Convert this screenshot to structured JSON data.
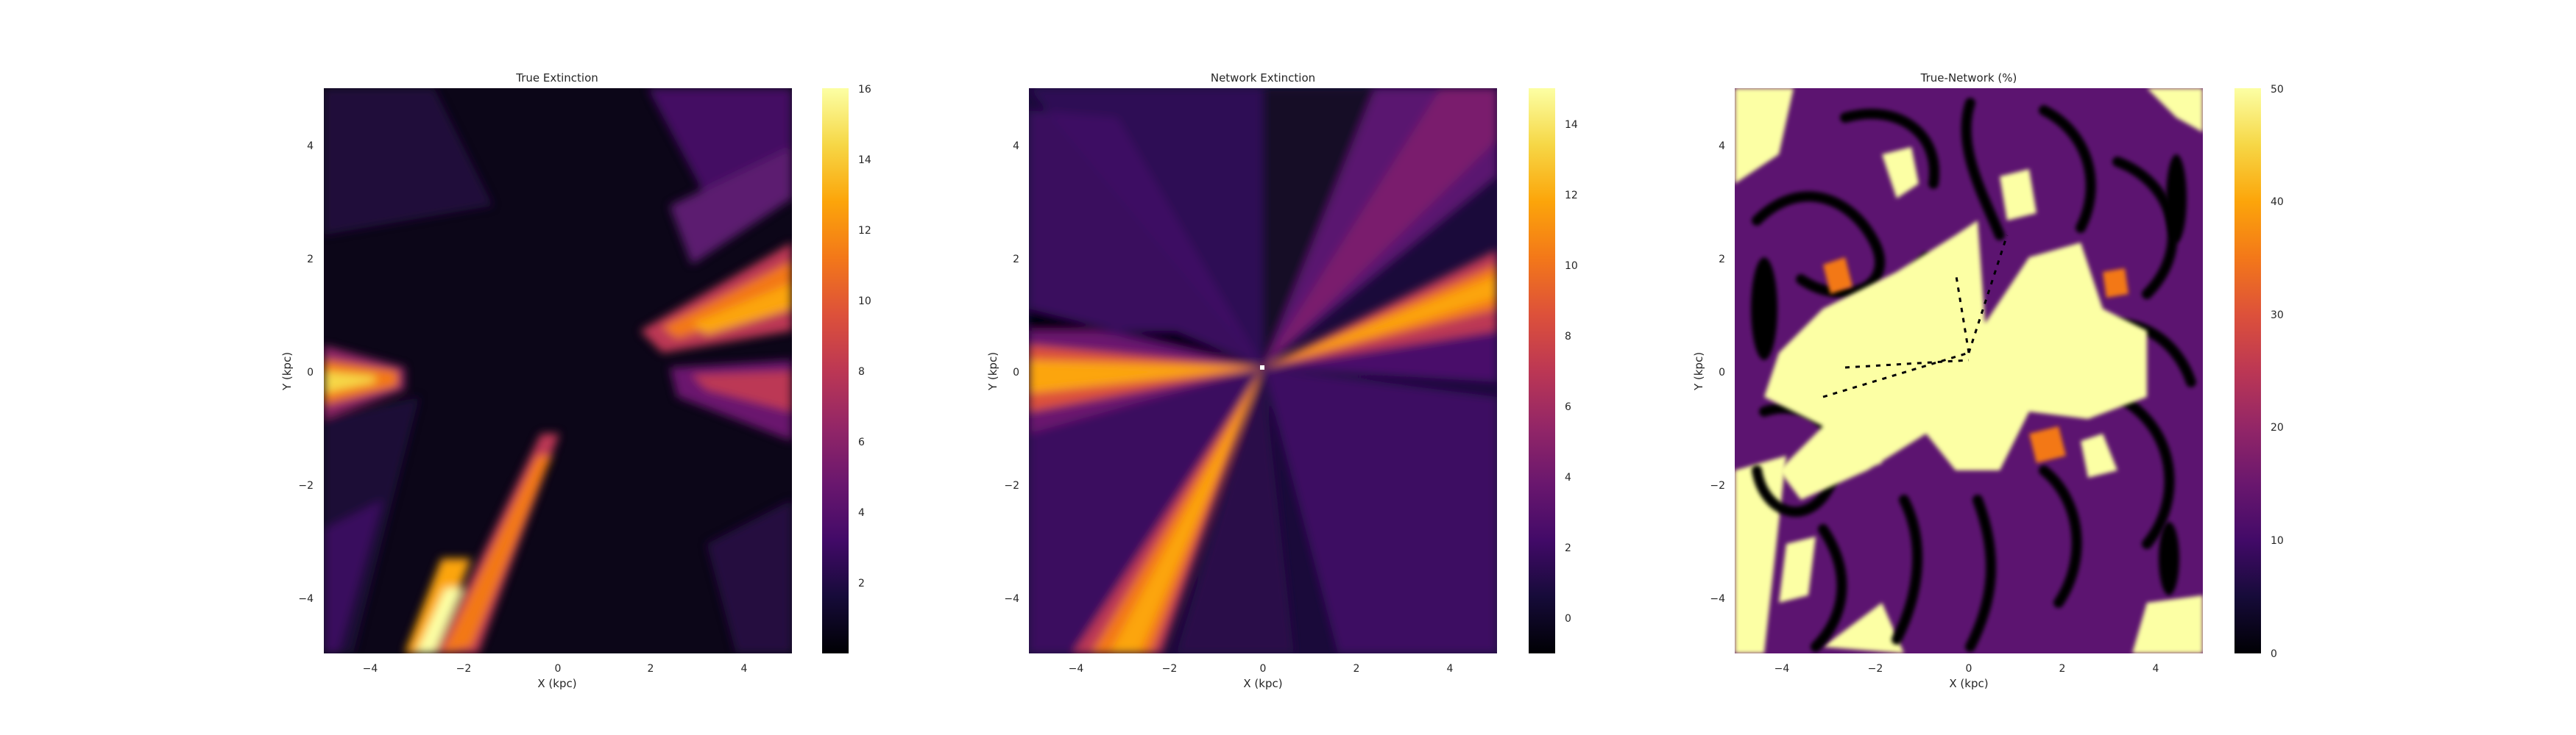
{
  "chart_data": [
    {
      "type": "heatmap",
      "title": "True Extinction",
      "xlabel": "X (kpc)",
      "ylabel": "Y (kpc)",
      "xlim": [
        -5,
        5
      ],
      "ylim": [
        -5,
        5
      ],
      "xticks": [
        "−4",
        "−2",
        "0",
        "2",
        "4"
      ],
      "yticks": [
        "4",
        "2",
        "0",
        "−2",
        "−4"
      ],
      "colormap": "inferno",
      "colorbar": {
        "min": 0,
        "max": 16,
        "ticks": [
          "2",
          "4",
          "6",
          "8",
          "10",
          "12",
          "14",
          "16"
        ]
      }
    },
    {
      "type": "heatmap",
      "title": "Network Extinction",
      "xlabel": "X (kpc)",
      "ylabel": "Y (kpc)",
      "xlim": [
        -5,
        5
      ],
      "ylim": [
        -5,
        5
      ],
      "xticks": [
        "−4",
        "−2",
        "0",
        "2",
        "4"
      ],
      "yticks": [
        "4",
        "2",
        "0",
        "−2",
        "−4"
      ],
      "colormap": "inferno",
      "colorbar": {
        "min": -1,
        "max": 15,
        "ticks": [
          "0",
          "2",
          "4",
          "6",
          "8",
          "10",
          "12",
          "14"
        ]
      }
    },
    {
      "type": "heatmap",
      "title": "True-Network (%)",
      "xlabel": "X (kpc)",
      "ylabel": "Y (kpc)",
      "xlim": [
        -5,
        5
      ],
      "ylim": [
        -5,
        5
      ],
      "xticks": [
        "−4",
        "−2",
        "0",
        "2",
        "4"
      ],
      "yticks": [
        "4",
        "2",
        "0",
        "−2",
        "−4"
      ],
      "colormap": "inferno",
      "colorbar": {
        "min": 0,
        "max": 50,
        "ticks": [
          "0",
          "10",
          "20",
          "30",
          "40",
          "50"
        ]
      }
    }
  ]
}
